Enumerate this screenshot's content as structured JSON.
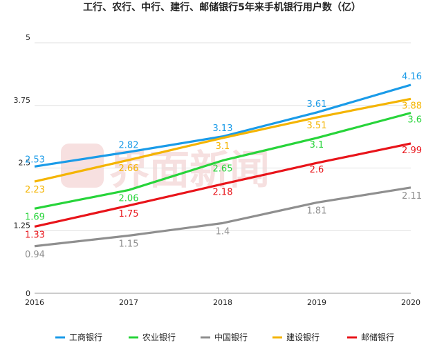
{
  "chart_data": {
    "type": "line",
    "title": "工行、农行、中行、建行、邮储银行5年来手机银行用户数（亿）",
    "x": [
      "2016",
      "2017",
      "2018",
      "2019",
      "2020"
    ],
    "ylim": [
      0,
      5
    ],
    "yticks": [
      "0",
      "1.25",
      "2.5",
      "3.75",
      "5"
    ],
    "grid": true,
    "legend_position": "bottom",
    "series": [
      {
        "name": "工商银行",
        "color": "#1a9be8",
        "values": [
          2.53,
          2.82,
          3.13,
          3.61,
          4.16
        ],
        "labels": [
          "2.53",
          "2.82",
          "3.13",
          "3.61",
          "4.16"
        ]
      },
      {
        "name": "农业银行",
        "color": "#27d43a",
        "values": [
          1.69,
          2.06,
          2.65,
          3.1,
          3.6
        ],
        "labels": [
          "1.69",
          "2.06",
          "2.65",
          "3.1",
          "3.6"
        ]
      },
      {
        "name": "中国银行",
        "color": "#8f8f8f",
        "values": [
          0.94,
          1.15,
          1.4,
          1.81,
          2.11
        ],
        "labels": [
          "0.94",
          "1.15",
          "1.4",
          "1.81",
          "2.11"
        ]
      },
      {
        "name": "建设银行",
        "color": "#f4b400",
        "values": [
          2.23,
          2.66,
          3.1,
          3.51,
          3.88
        ],
        "labels": [
          "2.23",
          "2.66",
          "3.1",
          "3.51",
          "3.88"
        ]
      },
      {
        "name": "邮储银行",
        "color": "#e8141a",
        "values": [
          1.33,
          1.75,
          2.18,
          2.6,
          2.99
        ],
        "labels": [
          "1.33",
          "1.75",
          "2.18",
          "2.6",
          "2.99"
        ]
      }
    ]
  },
  "watermark": {
    "text": "界面新闻"
  }
}
